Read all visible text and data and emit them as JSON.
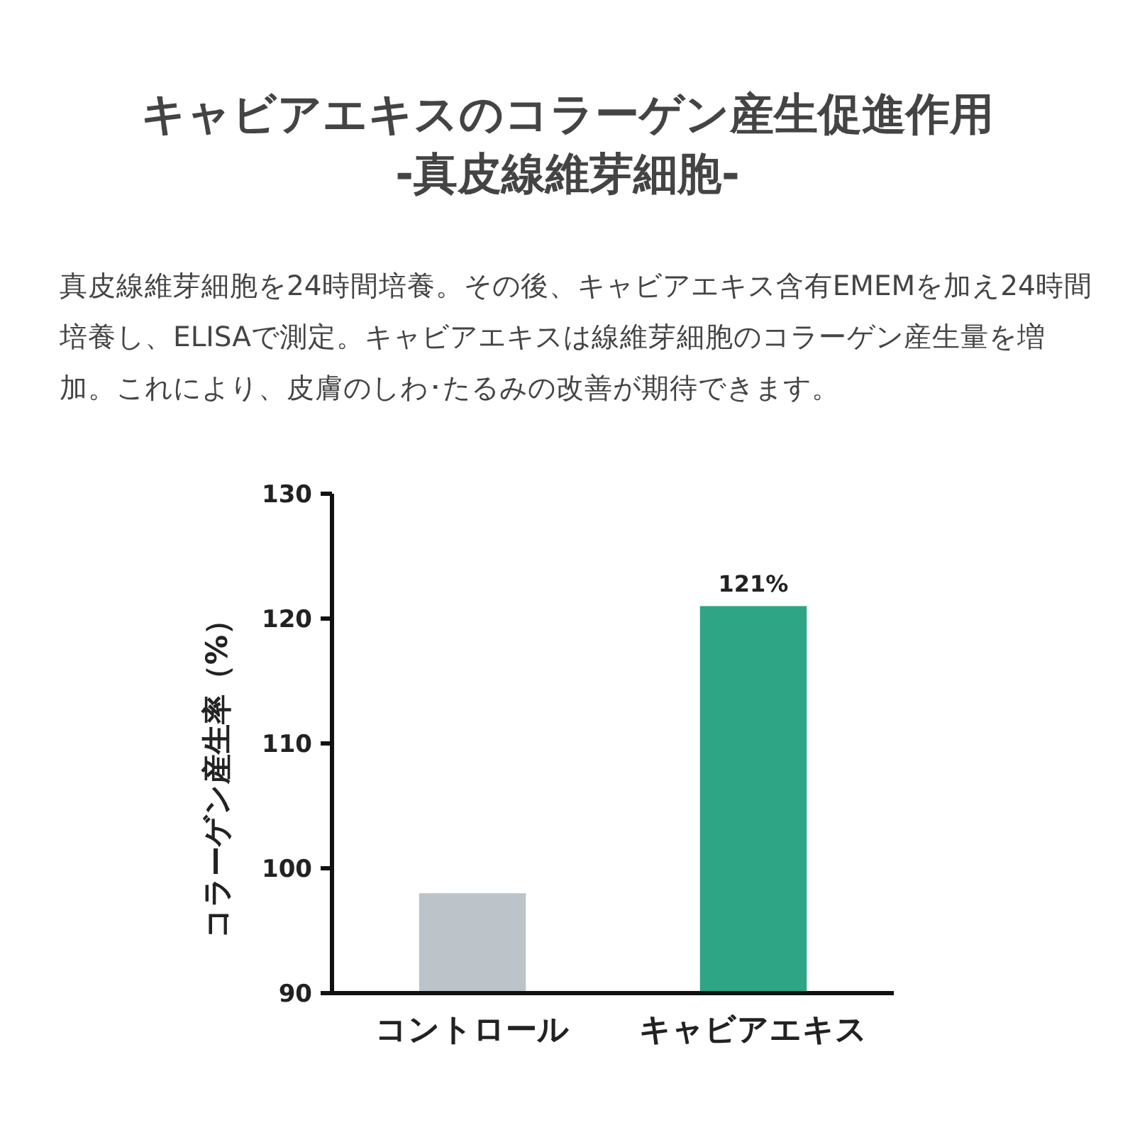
{
  "chart_data": {
    "type": "bar",
    "title": "キャビアエキスのコラーゲン産生促進作用",
    "subtitle": "-真皮線維芽細胞-",
    "annotations": [
      "真皮線維芽細胞を24時間培養。その後、キャビアエキス含有EMEMを加え24時間培養し、ELISAで測定。キャビアエキスは線維芽細胞のコラーゲン産生量を増加。これにより、皮膚のしわ･たるみの改善が期待できます。"
    ],
    "ylabel": "コラーゲン産生率（%）",
    "categories": [
      "コントロール",
      "キャビアエキス"
    ],
    "values": [
      98,
      121
    ],
    "colors": [
      "#bcc3c9",
      "#2ea585"
    ],
    "value_labels": [
      null,
      "121%"
    ],
    "ylim": [
      90,
      130
    ],
    "yticks": [
      90,
      100,
      110,
      120,
      130
    ]
  }
}
